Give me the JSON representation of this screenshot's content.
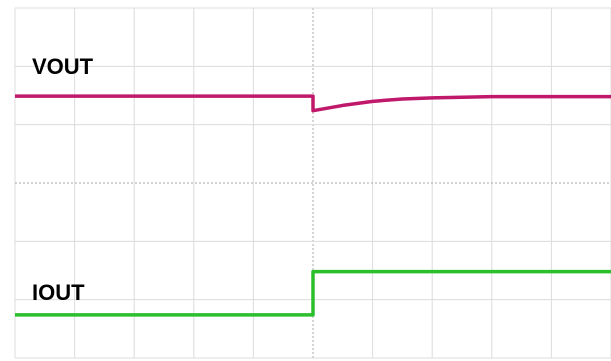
{
  "chart_data": {
    "type": "line",
    "x": [
      0,
      1,
      2,
      3,
      4,
      5,
      5,
      5.5,
      6,
      6.5,
      7,
      8,
      9,
      10
    ],
    "series": [
      {
        "name": "VOUT",
        "color": "#c0186a",
        "values": [
          4.49,
          4.49,
          4.49,
          4.49,
          4.49,
          4.49,
          4.24,
          4.33,
          4.4,
          4.44,
          4.46,
          4.48,
          4.48,
          4.48
        ]
      },
      {
        "name": "IOUT",
        "color": "#2cbf2c",
        "values": [
          0.74,
          0.74,
          0.74,
          0.74,
          0.74,
          0.74,
          1.48,
          1.48,
          1.48,
          1.48,
          1.48,
          1.48,
          1.48,
          1.48
        ]
      }
    ],
    "xlim": [
      0,
      10
    ],
    "ylim": [
      0,
      6
    ],
    "xticks": [
      0,
      1,
      2,
      3,
      4,
      5,
      6,
      7,
      8,
      9,
      10
    ],
    "yticks": [
      0,
      1,
      2,
      3,
      4,
      5,
      6
    ],
    "grid": true
  }
}
